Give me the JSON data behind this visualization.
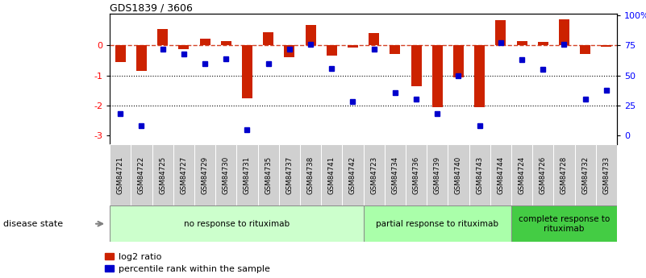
{
  "title": "GDS1839 / 3606",
  "samples": [
    "GSM84721",
    "GSM84722",
    "GSM84725",
    "GSM84727",
    "GSM84729",
    "GSM84730",
    "GSM84731",
    "GSM84735",
    "GSM84737",
    "GSM84738",
    "GSM84741",
    "GSM84742",
    "GSM84723",
    "GSM84734",
    "GSM84736",
    "GSM84739",
    "GSM84740",
    "GSM84743",
    "GSM84744",
    "GSM84724",
    "GSM84726",
    "GSM84728",
    "GSM84732",
    "GSM84733"
  ],
  "log2_ratio": [
    -0.55,
    -0.85,
    0.55,
    -0.12,
    0.22,
    0.15,
    -1.75,
    0.45,
    -0.38,
    0.68,
    -0.35,
    -0.08,
    0.42,
    -0.28,
    -1.35,
    -2.05,
    -1.05,
    -2.05,
    0.85,
    0.15,
    0.12,
    0.88,
    -0.28,
    -0.05
  ],
  "percentile": [
    18,
    8,
    72,
    68,
    60,
    64,
    5,
    60,
    72,
    76,
    56,
    28,
    72,
    36,
    30,
    18,
    50,
    8,
    77,
    63,
    55,
    76,
    30,
    38
  ],
  "groups": [
    {
      "label": "no response to rituximab",
      "start": 0,
      "end": 12,
      "color": "#ccffcc"
    },
    {
      "label": "partial response to rituximab",
      "start": 12,
      "end": 19,
      "color": "#aaffaa"
    },
    {
      "label": "complete response to\nrituximab",
      "start": 19,
      "end": 24,
      "color": "#44cc44"
    }
  ],
  "bar_color": "#cc2200",
  "dot_color": "#0000cc",
  "ylim_min": -3.3,
  "ylim_max": 1.05,
  "yticks_left": [
    -3,
    -2,
    -1,
    0
  ],
  "right_pcts": [
    0,
    25,
    50,
    75,
    100
  ],
  "right_labels": [
    "0",
    "25",
    "50",
    "75",
    "100%"
  ],
  "dotted_lines": [
    -1,
    -2
  ],
  "legend_labels": [
    "log2 ratio",
    "percentile rank within the sample"
  ],
  "legend_colors": [
    "#cc2200",
    "#0000cc"
  ],
  "bar_width": 0.5
}
